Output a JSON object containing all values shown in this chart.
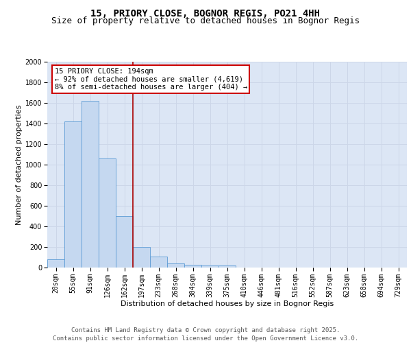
{
  "title1": "15, PRIORY CLOSE, BOGNOR REGIS, PO21 4HH",
  "title2": "Size of property relative to detached houses in Bognor Regis",
  "xlabel": "Distribution of detached houses by size in Bognor Regis",
  "ylabel": "Number of detached properties",
  "bar_labels": [
    "20sqm",
    "55sqm",
    "91sqm",
    "126sqm",
    "162sqm",
    "197sqm",
    "233sqm",
    "268sqm",
    "304sqm",
    "339sqm",
    "375sqm",
    "410sqm",
    "446sqm",
    "481sqm",
    "516sqm",
    "552sqm",
    "587sqm",
    "623sqm",
    "658sqm",
    "694sqm",
    "729sqm"
  ],
  "bar_values": [
    80,
    1420,
    1620,
    1060,
    500,
    200,
    105,
    40,
    30,
    20,
    20,
    0,
    0,
    0,
    0,
    0,
    0,
    0,
    0,
    0,
    0
  ],
  "bar_color": "#c5d8f0",
  "bar_edge_color": "#5b9bd5",
  "vline_color": "#aa0000",
  "annotation_text": "15 PRIORY CLOSE: 194sqm\n← 92% of detached houses are smaller (4,619)\n8% of semi-detached houses are larger (404) →",
  "annotation_box_color": "#ffffff",
  "annotation_box_edge": "#cc0000",
  "annotation_fontsize": 7.5,
  "ylim": [
    0,
    2000
  ],
  "yticks": [
    0,
    200,
    400,
    600,
    800,
    1000,
    1200,
    1400,
    1600,
    1800,
    2000
  ],
  "grid_color": "#ccd6e8",
  "background_color": "#dce6f5",
  "footer": "Contains HM Land Registry data © Crown copyright and database right 2025.\nContains public sector information licensed under the Open Government Licence v3.0.",
  "title_fontsize": 10,
  "subtitle_fontsize": 9,
  "xlabel_fontsize": 8,
  "ylabel_fontsize": 8,
  "tick_fontsize": 7,
  "footer_fontsize": 6.5
}
